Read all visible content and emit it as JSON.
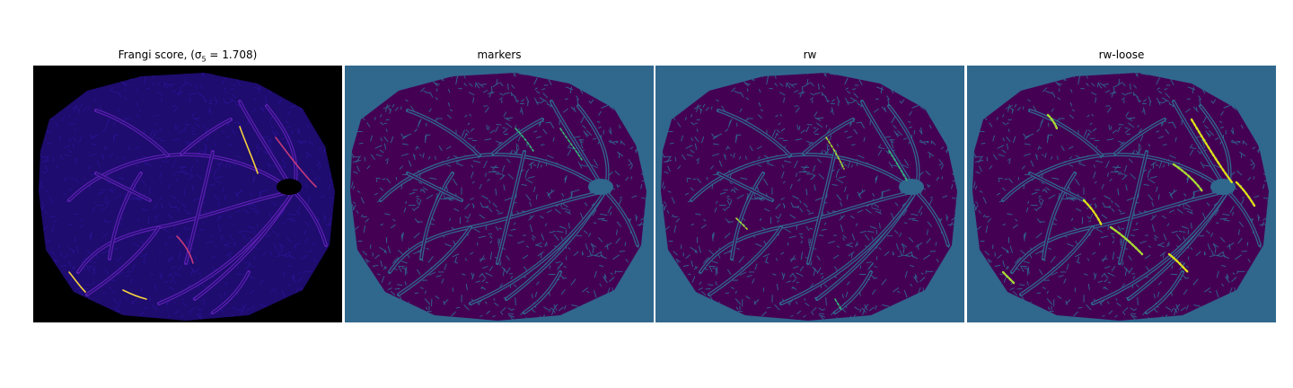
{
  "figure": {
    "panels": [
      {
        "id": "frangi",
        "title": "Frangi score, (σ",
        "title_sub": "5",
        "title_rest": " = 1.708)",
        "background": "#000000",
        "tissue": "#1e0c6e",
        "texture": "#2a1290",
        "vessel": "#5a1fb0",
        "highlight": "#f7d13d",
        "highlight2": "#c3397a"
      },
      {
        "id": "markers",
        "title": "markers",
        "background": "#30678d",
        "tissue": "#440154",
        "texture": "#30678d",
        "vessel": "#30678d",
        "highlight": "#35b779",
        "highlight2": "#35b779"
      },
      {
        "id": "rw",
        "title": "rw",
        "background": "#30678d",
        "tissue": "#440154",
        "texture": "#30678d",
        "vessel": "#30678d",
        "highlight": "#a8db34",
        "highlight2": "#35b779"
      },
      {
        "id": "rw-loose",
        "title": "rw-loose",
        "background": "#30678d",
        "tissue": "#440154",
        "texture": "#30678d",
        "vessel": "#30678d",
        "highlight": "#dde318",
        "highlight2": "#a8db34"
      }
    ]
  }
}
